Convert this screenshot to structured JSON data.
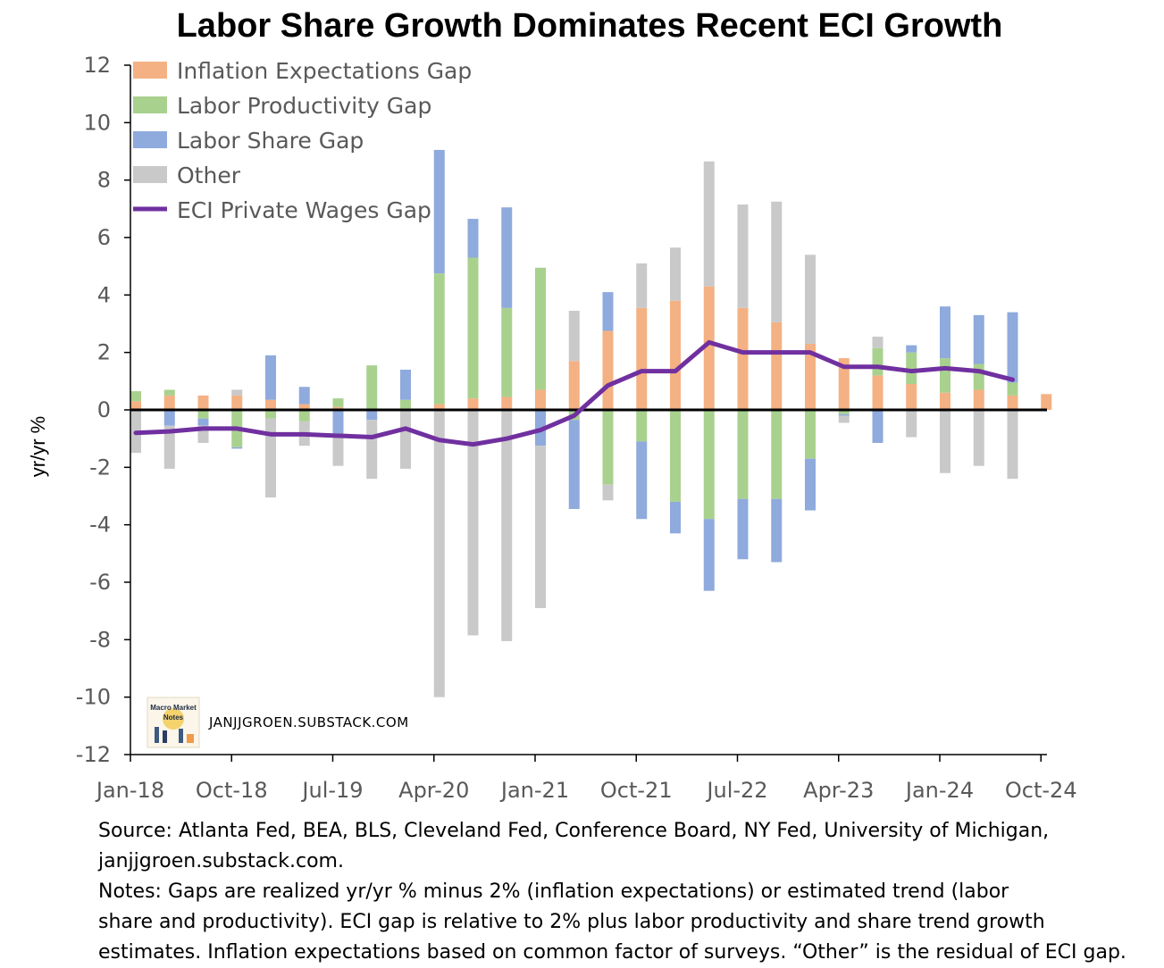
{
  "chart_data": {
    "type": "bar",
    "title": "Labor Share Growth Dominates Recent ECI Growth",
    "ylabel": "yr/yr %",
    "ylim": [
      -12,
      12
    ],
    "yticks": [
      12,
      10,
      8,
      6,
      4,
      2,
      0,
      -2,
      -4,
      -6,
      -8,
      -10,
      -12
    ],
    "xtick_labels": [
      "Jan-18",
      "Oct-18",
      "Jul-19",
      "Apr-20",
      "Jan-21",
      "Oct-21",
      "Jul-22",
      "Apr-23",
      "Jan-24",
      "Oct-24"
    ],
    "categories": [
      "2018Q1",
      "2018Q2",
      "2018Q3",
      "2018Q4",
      "2019Q1",
      "2019Q2",
      "2019Q3",
      "2019Q4",
      "2020Q1",
      "2020Q2",
      "2020Q3",
      "2020Q4",
      "2021Q1",
      "2021Q2",
      "2021Q3",
      "2021Q4",
      "2022Q1",
      "2022Q2",
      "2022Q3",
      "2022Q4",
      "2023Q1",
      "2023Q2",
      "2023Q3",
      "2023Q4",
      "2024Q1",
      "2024Q2",
      "2024Q3",
      "2024Q4"
    ],
    "stacked": true,
    "series": [
      {
        "name": "Inflation Expectations Gap",
        "kind": "bar",
        "color": "#f4b183",
        "values": [
          0.3,
          0.5,
          0.5,
          0.5,
          0.35,
          0.2,
          0.1,
          0.0,
          0.05,
          0.2,
          0.4,
          0.45,
          0.7,
          1.7,
          2.75,
          3.55,
          3.8,
          4.3,
          3.55,
          3.05,
          2.3,
          1.8,
          1.2,
          0.9,
          0.6,
          0.7,
          0.5,
          0.55
        ]
      },
      {
        "name": "Labor Productivity Gap",
        "kind": "bar",
        "color": "#a9d18e",
        "values": [
          0.35,
          0.2,
          -0.3,
          -1.3,
          -0.3,
          -0.4,
          0.3,
          1.55,
          0.3,
          4.55,
          4.9,
          3.1,
          4.25,
          -0.35,
          -2.6,
          -1.1,
          -3.2,
          -3.8,
          -3.1,
          -3.1,
          -1.7,
          -0.15,
          0.95,
          1.1,
          1.2,
          0.9,
          0.45,
          0.0
        ]
      },
      {
        "name": "Labor Share Gap",
        "kind": "bar",
        "color": "#8faadc",
        "values": [
          0.0,
          -0.55,
          -0.25,
          -0.05,
          1.55,
          0.6,
          -0.95,
          -0.35,
          1.05,
          4.3,
          1.35,
          3.5,
          -1.25,
          -3.1,
          1.35,
          -2.7,
          -1.1,
          -2.5,
          -2.1,
          -2.2,
          -1.8,
          -0.05,
          -1.15,
          0.25,
          1.8,
          1.7,
          2.45,
          0.0
        ]
      },
      {
        "name": "Other",
        "kind": "bar",
        "color": "#c9c9c9",
        "values": [
          -1.5,
          -1.5,
          -0.6,
          0.2,
          -2.75,
          -0.85,
          -1.0,
          -2.05,
          -2.05,
          -10.0,
          -7.85,
          -8.05,
          -5.65,
          1.75,
          -0.55,
          1.55,
          1.85,
          4.35,
          3.6,
          4.2,
          3.1,
          -0.25,
          0.4,
          -0.95,
          -2.2,
          -1.95,
          -2.4,
          0.0
        ]
      },
      {
        "name": "ECI Private Wages Gap",
        "kind": "line",
        "color": "#7030a0",
        "values": [
          -0.8,
          -0.75,
          -0.65,
          -0.65,
          -0.85,
          -0.85,
          -0.9,
          -0.95,
          -0.65,
          -1.05,
          -1.2,
          -1.0,
          -0.7,
          -0.2,
          0.85,
          1.35,
          1.35,
          2.35,
          2.0,
          2.0,
          2.0,
          1.5,
          1.5,
          1.35,
          1.45,
          1.35,
          1.05,
          null
        ]
      }
    ],
    "legend_position": "top-left",
    "grid": false,
    "zero_line": true
  },
  "watermark": {
    "logo_text_line1": "Macro Market",
    "logo_text_line2": "Notes",
    "site": "JANJJGROEN.SUBSTACK.COM"
  },
  "notes": {
    "source_line1": "Source: Atlanta Fed, BEA, BLS, Cleveland Fed, Conference Board, NY Fed, University of Michigan,",
    "source_line2": "janjjgroen.substack.com.",
    "notes_line1": "Notes: Gaps are realized yr/yr % minus 2% (inflation expectations) or estimated trend (labor",
    "notes_line2": "share and productivity). ECI gap is relative to 2% plus labor productivity and share trend growth",
    "notes_line3": "estimates. Inflation expectations based on common factor of surveys. “Other” is the residual of ECI gap."
  }
}
